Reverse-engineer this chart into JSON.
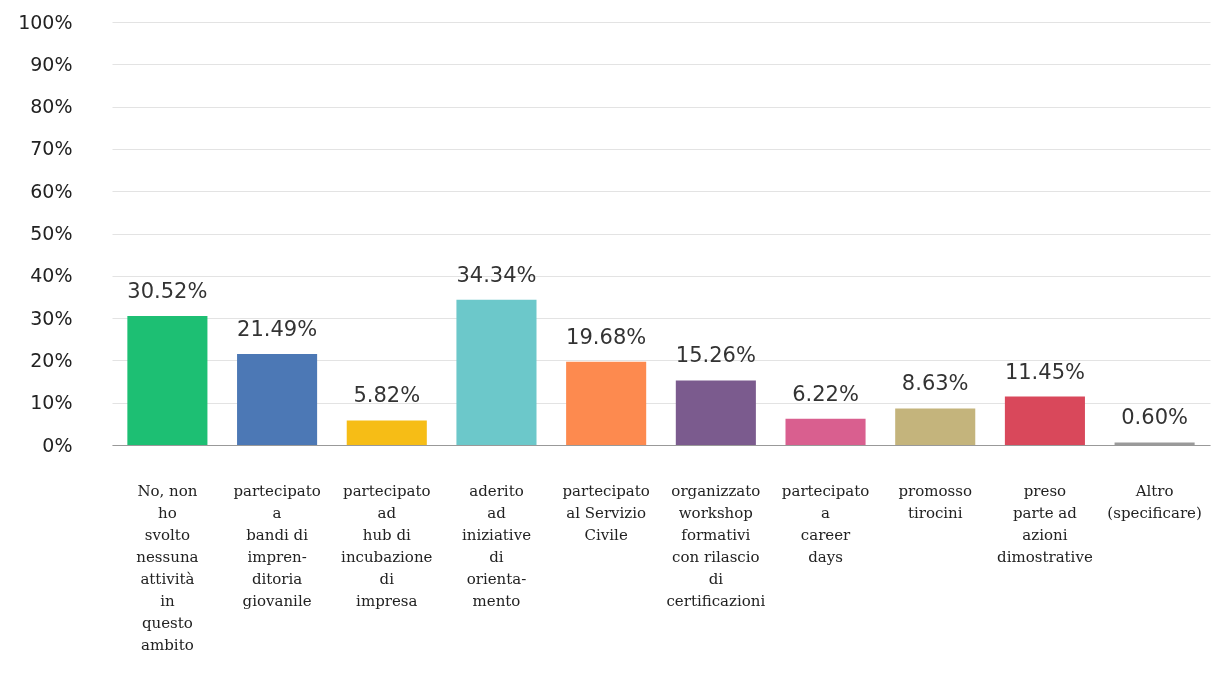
{
  "chart_data": {
    "type": "bar",
    "categories": [
      "No, non\nho\nsvolto\nnessuna\nattività\nin\nquesto\nambito",
      "partecipato\na\nbandi di\nimpren-\nditoria\ngiovanile",
      "partecipato\nad\nhub di\nincubazione\ndi\nimpresa",
      "aderito\nad\niniziative\ndi\norienta-\nmento",
      "partecipato\nal Servizio\nCivile",
      "organizzato\nworkshop\nformativi\ncon rilascio\ndi\ncertificazioni",
      "partecipato\na\ncareer\ndays",
      "promosso\ntirocini",
      "preso\nparte ad\nazioni\ndimostrative",
      "Altro\n(specificare)"
    ],
    "values": [
      30.52,
      21.49,
      5.82,
      34.34,
      19.68,
      15.26,
      6.22,
      8.63,
      11.45,
      0.6
    ],
    "value_labels": [
      "30.52%",
      "21.49%",
      "5.82%",
      "34.34%",
      "19.68%",
      "15.26%",
      "6.22%",
      "8.63%",
      "11.45%",
      "0.60%"
    ],
    "colors": [
      "#1dbf73",
      "#4c78b5",
      "#f6bd16",
      "#6cc8ca",
      "#fd8a4f",
      "#7b5b8e",
      "#d95f8f",
      "#c4b47c",
      "#d9485b",
      "#9a9a9a"
    ],
    "ylim": [
      0,
      100
    ],
    "yticks": [
      {
        "value": 0,
        "label": "0%"
      },
      {
        "value": 10,
        "label": "10%"
      },
      {
        "value": 20,
        "label": "20%"
      },
      {
        "value": 30,
        "label": "30%"
      },
      {
        "value": 40,
        "label": "40%"
      },
      {
        "value": 50,
        "label": "50%"
      },
      {
        "value": 60,
        "label": "60%"
      },
      {
        "value": 70,
        "label": "70%"
      },
      {
        "value": 80,
        "label": "80%"
      },
      {
        "value": 90,
        "label": "90%"
      },
      {
        "value": 100,
        "label": "100%"
      }
    ],
    "grid": "y"
  }
}
